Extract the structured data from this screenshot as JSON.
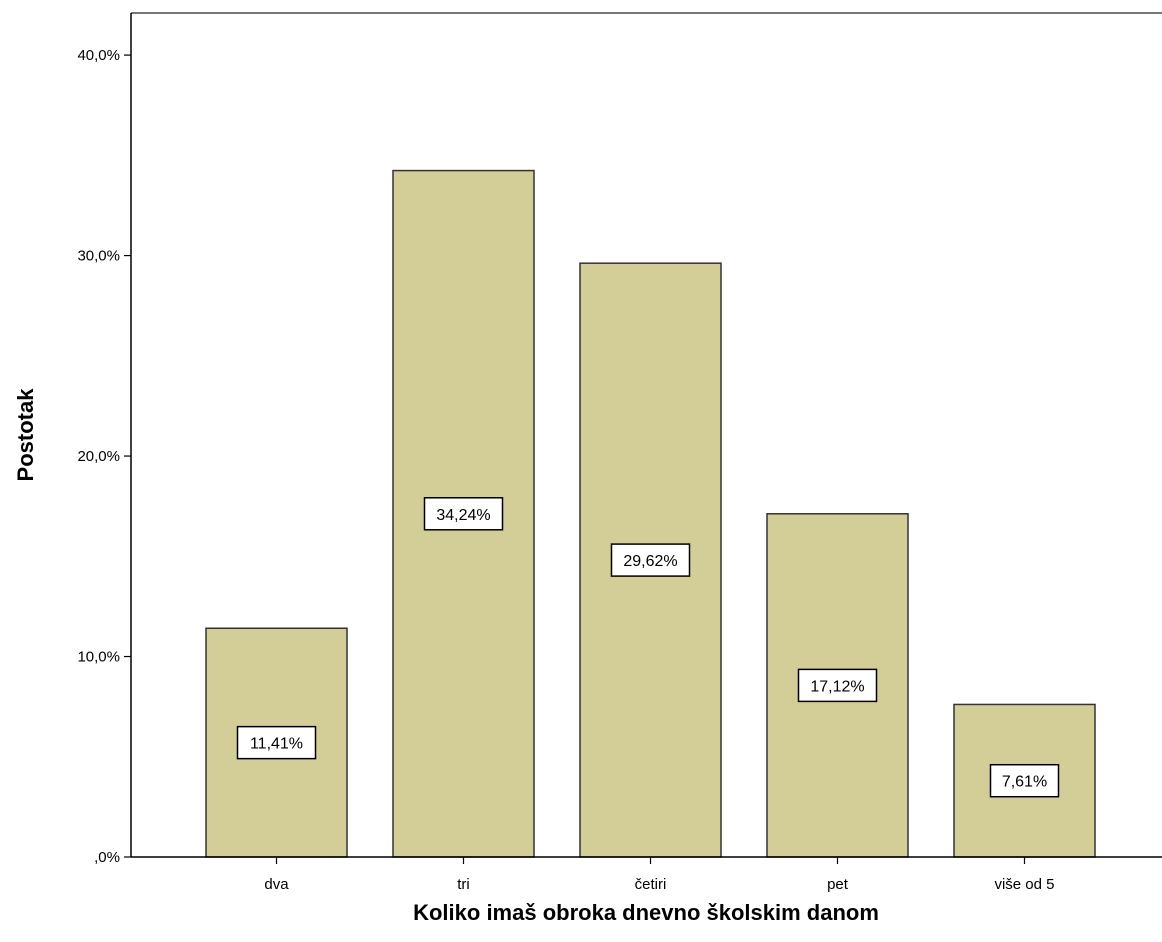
{
  "chart_data": {
    "type": "bar",
    "title": "",
    "xlabel": "Koliko imaš obroka dnevno školskim danom",
    "ylabel": "Postotak",
    "categories": [
      "dva",
      "tri",
      "četiri",
      "pet",
      "više od 5"
    ],
    "values": [
      11.41,
      34.24,
      29.62,
      17.12,
      7.61
    ],
    "data_labels": [
      "11,41%",
      "34,24%",
      "29,62%",
      "17,12%",
      "7,61%"
    ],
    "y_ticks": [
      {
        "value": 0,
        "label": ",0%"
      },
      {
        "value": 10,
        "label": "10,0%"
      },
      {
        "value": 20,
        "label": "20,0%"
      },
      {
        "value": 30,
        "label": "30,0%"
      },
      {
        "value": 40,
        "label": "40,0%"
      }
    ],
    "ylim": [
      0,
      42.1
    ],
    "grid": false,
    "legend": "none",
    "colors": {
      "bar_fill": "#d3ce97",
      "bar_stroke": "#333333",
      "axis": "#000000",
      "frame": "#777777",
      "label_box_fill": "#ffffff",
      "label_box_stroke": "#000000"
    }
  }
}
